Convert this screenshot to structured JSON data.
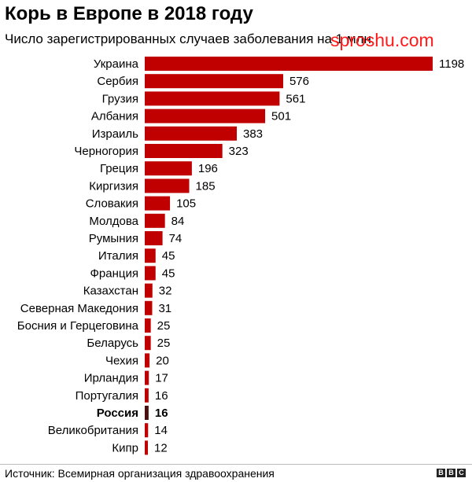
{
  "watermark": "sproshu.com",
  "footer": {
    "source": "Источник: Всемирная организация здравоохранения",
    "logo": [
      "B",
      "B",
      "C"
    ]
  },
  "colors": {
    "bar": "#c00000",
    "highlight_bar": "#4a0f0f"
  },
  "chart_data": {
    "type": "bar",
    "orientation": "horizontal",
    "title": "Корь в Европе в 2018 году",
    "subtitle": "Число зарегистрированных случаев заболевания на 1 млн",
    "categories": [
      "Украина",
      "Сербия",
      "Грузия",
      "Албания",
      "Израиль",
      "Черногория",
      "Греция",
      "Киргизия",
      "Словакия",
      "Молдова",
      "Румыния",
      "Италия",
      "Франция",
      "Казахстан",
      "Северная Македония",
      "Босния и Герцеговина",
      "Беларусь",
      "Чехия",
      "Ирландия",
      "Португалия",
      "Россия",
      "Великобритания",
      "Кипр"
    ],
    "values": [
      1198,
      576,
      561,
      501,
      383,
      323,
      196,
      185,
      105,
      84,
      74,
      45,
      45,
      32,
      31,
      25,
      25,
      20,
      17,
      16,
      16,
      14,
      12
    ],
    "highlight": "Россия",
    "xlim": [
      0,
      1198
    ],
    "grid": false,
    "legend": "none"
  }
}
